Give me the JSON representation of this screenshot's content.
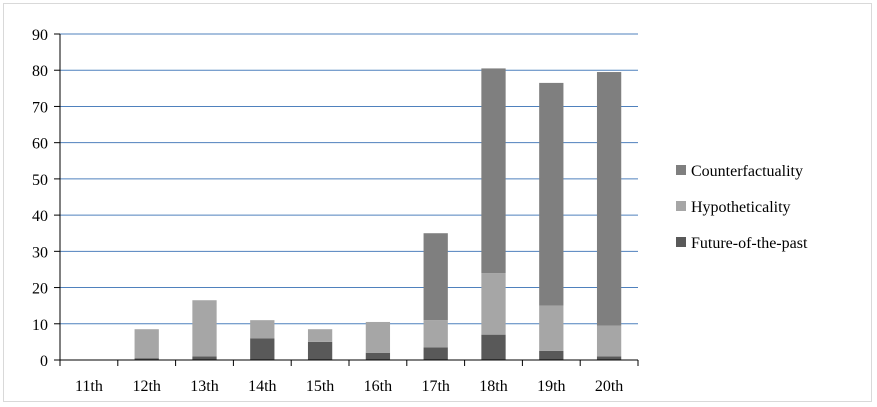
{
  "chart_data": {
    "type": "bar",
    "stacked": true,
    "categories": [
      "11th",
      "12th",
      "13th",
      "14th",
      "15th",
      "16th",
      "17th",
      "18th",
      "19th",
      "20th"
    ],
    "series": [
      {
        "name": "Future-of-the-past",
        "color": "#595959",
        "values": [
          0,
          0.5,
          1,
          6,
          5,
          2,
          3.5,
          7,
          2.5,
          1
        ]
      },
      {
        "name": "Hypotheticality",
        "color": "#a6a6a6",
        "values": [
          0,
          8,
          15.5,
          5,
          3.5,
          8.5,
          7.5,
          17,
          12.5,
          8.5
        ]
      },
      {
        "name": "Counterfactuality",
        "color": "#7f7f7f",
        "values": [
          0,
          0,
          0,
          0,
          0,
          0,
          24,
          56.5,
          61.5,
          70
        ]
      }
    ],
    "title": "",
    "xlabel": "",
    "ylabel": "",
    "ylim": [
      0,
      90
    ],
    "yticks": [
      0,
      10,
      20,
      30,
      40,
      50,
      60,
      70,
      80,
      90
    ],
    "grid": true,
    "legend_position": "right",
    "legend_order": [
      "Counterfactuality",
      "Hypotheticality",
      "Future-of-the-past"
    ]
  }
}
